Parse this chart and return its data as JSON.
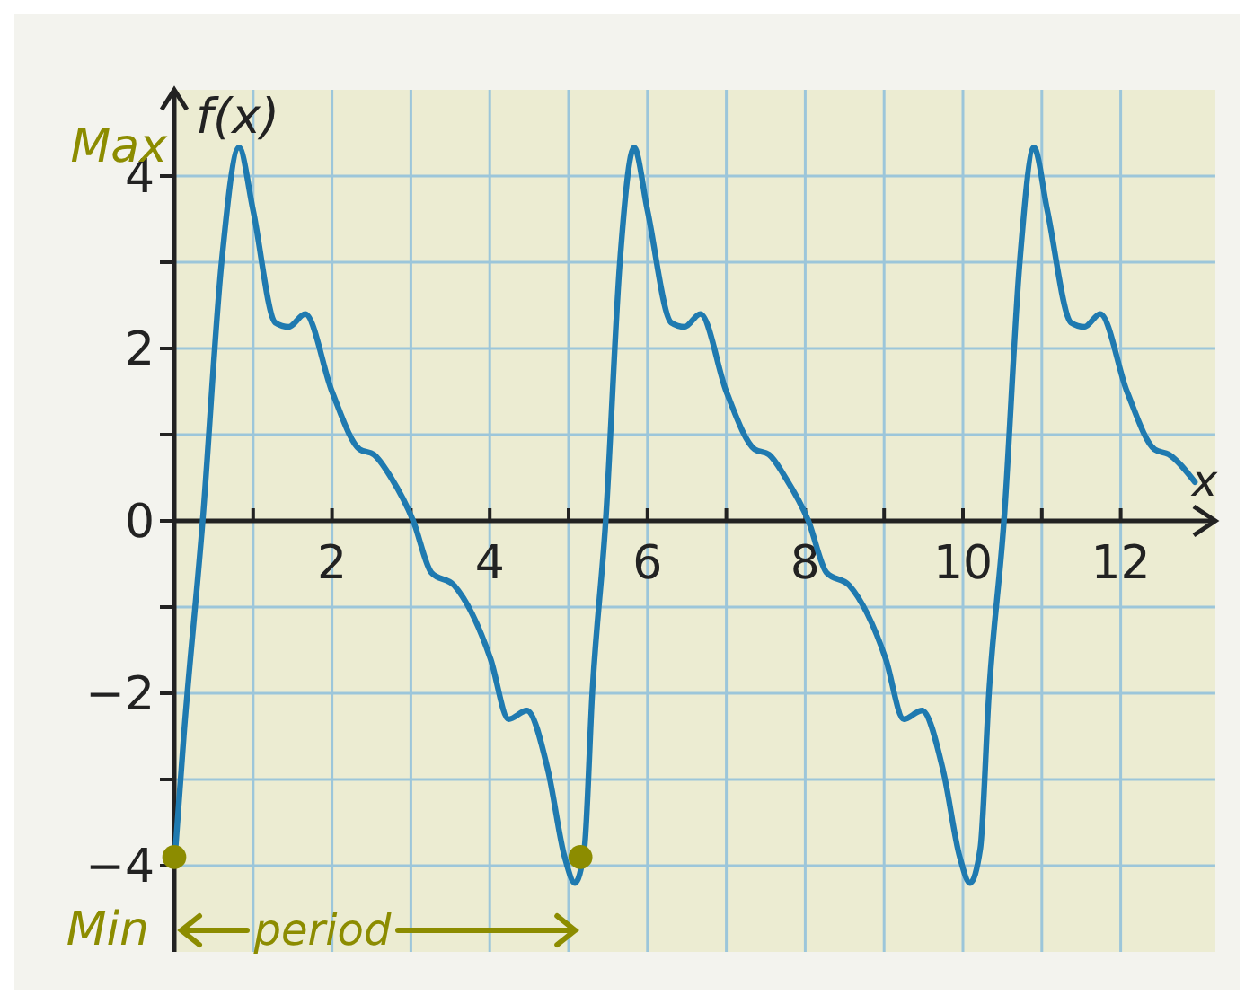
{
  "chart_data": {
    "type": "line",
    "xlabel": "x",
    "ylabel": "f(x)",
    "xlim": [
      0,
      13.2
    ],
    "ylim": [
      -5,
      5
    ],
    "xticks": [
      {
        "value": 1,
        "label": null
      },
      2,
      {
        "value": 3,
        "label": null
      },
      4,
      {
        "value": 5,
        "label": null
      },
      6,
      {
        "value": 7,
        "label": null
      },
      8,
      {
        "value": 9,
        "label": null
      },
      10,
      {
        "value": 11,
        "label": null
      },
      12
    ],
    "yticks": [
      {
        "value": -4,
        "label": "−4"
      },
      {
        "value": -3,
        "label": null
      },
      {
        "value": -2,
        "label": "−2"
      },
      {
        "value": -1,
        "label": null
      },
      0,
      {
        "value": 1,
        "label": null
      },
      2,
      {
        "value": 3,
        "label": null
      },
      4
    ],
    "grid": true,
    "marker": "none",
    "line_style": "solid",
    "series": [
      {
        "color": "#1f7ab0",
        "x": [
          0,
          0.12,
          0.36,
          0.6,
          0.82,
          1.0,
          1.28,
          1.45,
          1.66,
          2.0,
          2.35,
          2.53,
          2.75,
          3.03,
          3.26,
          3.55,
          4.01,
          4.24,
          4.47,
          4.74,
          4.95,
          5.08,
          5.2,
          5.3,
          5.47,
          5.65,
          5.83,
          6.0,
          6.3,
          6.47,
          6.67,
          7.0,
          7.36,
          7.54,
          7.75,
          8.04,
          8.27,
          8.56,
          9.02,
          9.25,
          9.48,
          9.75,
          9.96,
          10.09,
          10.22,
          10.33,
          10.52,
          10.72,
          10.9,
          11.07,
          11.37,
          11.54,
          11.74,
          12.08,
          12.43,
          12.61,
          12.94
        ],
        "values": [
          -4.0,
          -2.5,
          0,
          3.0,
          4.33,
          3.6,
          2.3,
          2.25,
          2.4,
          1.5,
          0.83,
          0.77,
          0.5,
          0.0,
          -0.6,
          -0.75,
          -1.6,
          -2.3,
          -2.2,
          -2.9,
          -3.9,
          -4.2,
          -3.8,
          -2.0,
          0,
          3.0,
          4.33,
          3.6,
          2.3,
          2.25,
          2.4,
          1.5,
          0.83,
          0.77,
          0.5,
          0,
          -0.6,
          -0.75,
          -1.6,
          -2.3,
          -2.2,
          -2.9,
          -3.9,
          -4.2,
          -3.8,
          -2.0,
          0,
          3.0,
          4.33,
          3.6,
          2.3,
          2.25,
          2.4,
          1.5,
          0.83,
          0.77,
          0.45
        ]
      },
      {
        "type": "scatter",
        "marker": "circle",
        "color": "#8c8c00",
        "x": [
          0,
          5.15
        ],
        "values": [
          -3.9,
          -3.9
        ]
      }
    ],
    "annotations": [
      "Max",
      "Min",
      "period"
    ]
  }
}
